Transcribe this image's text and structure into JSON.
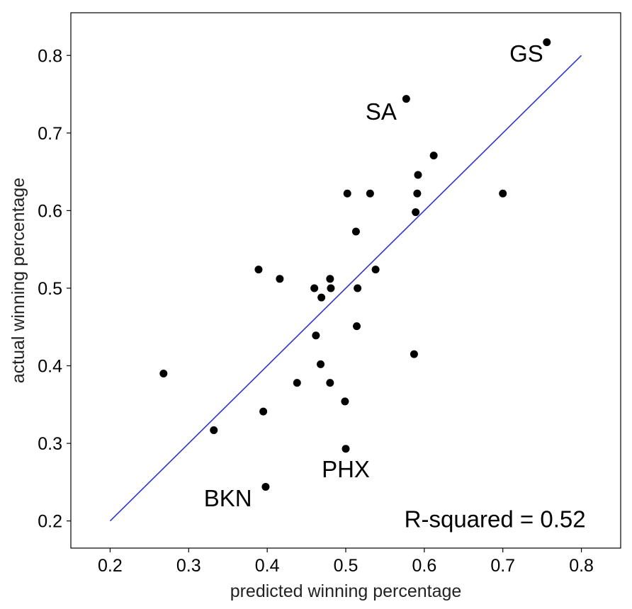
{
  "chart_data": {
    "type": "scatter",
    "title": "",
    "xlabel": "predicted winning percentage",
    "ylabel": "actual winning percentage",
    "xlim": [
      0.15,
      0.85
    ],
    "ylim": [
      0.165,
      0.855
    ],
    "xticks": [
      0.2,
      0.3,
      0.4,
      0.5,
      0.6,
      0.7,
      0.8
    ],
    "yticks": [
      0.2,
      0.3,
      0.4,
      0.5,
      0.6,
      0.7,
      0.8
    ],
    "xtick_labels": [
      "0.2",
      "0.3",
      "0.4",
      "0.5",
      "0.6",
      "0.7",
      "0.8"
    ],
    "ytick_labels": [
      "0.2",
      "0.3",
      "0.4",
      "0.5",
      "0.6",
      "0.7",
      "0.8"
    ],
    "grid": false,
    "point_color": "#000000",
    "line_color": "#3333cc",
    "points": [
      {
        "x": 0.756,
        "y": 0.817
      },
      {
        "x": 0.577,
        "y": 0.744
      },
      {
        "x": 0.612,
        "y": 0.671
      },
      {
        "x": 0.592,
        "y": 0.646
      },
      {
        "x": 0.502,
        "y": 0.622
      },
      {
        "x": 0.531,
        "y": 0.622
      },
      {
        "x": 0.591,
        "y": 0.622
      },
      {
        "x": 0.7,
        "y": 0.622
      },
      {
        "x": 0.589,
        "y": 0.598
      },
      {
        "x": 0.513,
        "y": 0.573
      },
      {
        "x": 0.389,
        "y": 0.524
      },
      {
        "x": 0.538,
        "y": 0.524
      },
      {
        "x": 0.416,
        "y": 0.512
      },
      {
        "x": 0.48,
        "y": 0.512
      },
      {
        "x": 0.46,
        "y": 0.5
      },
      {
        "x": 0.481,
        "y": 0.5
      },
      {
        "x": 0.515,
        "y": 0.5
      },
      {
        "x": 0.469,
        "y": 0.488
      },
      {
        "x": 0.514,
        "y": 0.451
      },
      {
        "x": 0.462,
        "y": 0.439
      },
      {
        "x": 0.587,
        "y": 0.415
      },
      {
        "x": 0.468,
        "y": 0.402
      },
      {
        "x": 0.268,
        "y": 0.39
      },
      {
        "x": 0.438,
        "y": 0.378
      },
      {
        "x": 0.48,
        "y": 0.378
      },
      {
        "x": 0.499,
        "y": 0.354
      },
      {
        "x": 0.395,
        "y": 0.341
      },
      {
        "x": 0.332,
        "y": 0.317
      },
      {
        "x": 0.5,
        "y": 0.293
      },
      {
        "x": 0.398,
        "y": 0.244
      }
    ],
    "fit_line": {
      "x": [
        0.2,
        0.8
      ],
      "y": [
        0.2,
        0.8
      ]
    },
    "annotations": [
      {
        "text": "GS",
        "x": 0.73,
        "y": 0.8
      },
      {
        "text": "SA",
        "x": 0.545,
        "y": 0.725
      },
      {
        "text": "PHX",
        "x": 0.5,
        "y": 0.264
      },
      {
        "text": "BKN",
        "x": 0.35,
        "y": 0.227
      },
      {
        "text": "R-squared = 0.52",
        "x": 0.69,
        "y": 0.2
      }
    ]
  }
}
